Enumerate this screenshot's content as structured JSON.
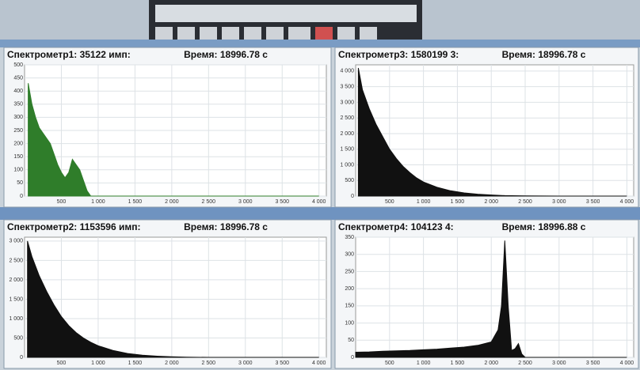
{
  "chart_data": [
    {
      "type": "area",
      "title": "Спектрометр1: 35122 имп:",
      "subtitle": "Время: 18996.78 с",
      "color": "#2f7d2a",
      "x": [
        50,
        100,
        150,
        200,
        250,
        300,
        350,
        400,
        450,
        500,
        550,
        600,
        650,
        700,
        750,
        800,
        850,
        900,
        1000,
        2000,
        3000,
        4000
      ],
      "values": [
        430,
        350,
        300,
        260,
        240,
        220,
        200,
        160,
        120,
        90,
        70,
        90,
        140,
        120,
        100,
        60,
        20,
        0,
        0,
        0,
        0,
        0
      ],
      "xlim": [
        0,
        4100
      ],
      "ylim": [
        0,
        500
      ],
      "xticks": [
        500,
        {
          "value": 1000,
          "label": "1 000"
        },
        {
          "value": 1500,
          "label": "1 500"
        },
        {
          "value": 2000,
          "label": "2 000"
        },
        {
          "value": 2500,
          "label": "2 500"
        },
        {
          "value": 3000,
          "label": "3 000"
        },
        {
          "value": 3500,
          "label": "3 500"
        },
        {
          "value": 4000,
          "label": "4 000"
        }
      ],
      "yticks": [
        0,
        50,
        100,
        150,
        200,
        250,
        300,
        350,
        400,
        450,
        500
      ],
      "grid": true
    },
    {
      "type": "area",
      "title": "Спектрометр3: 1580199 3:",
      "subtitle": "Время: 18996.78 с",
      "color": "#111111",
      "x": [
        40,
        100,
        200,
        300,
        400,
        500,
        600,
        700,
        800,
        900,
        1000,
        1200,
        1400,
        1600,
        1800,
        2000,
        2200,
        2500,
        3000,
        4000
      ],
      "values": [
        4100,
        3400,
        2800,
        2300,
        1900,
        1500,
        1200,
        950,
        750,
        580,
        450,
        280,
        170,
        100,
        60,
        35,
        15,
        5,
        0,
        0
      ],
      "xlim": [
        0,
        4100
      ],
      "ylim": [
        0,
        4200
      ],
      "xticks": [
        500,
        {
          "value": 1000,
          "label": "1 000"
        },
        {
          "value": 1500,
          "label": "1 500"
        },
        {
          "value": 2000,
          "label": "2 000"
        },
        {
          "value": 2500,
          "label": "2 500"
        },
        {
          "value": 3000,
          "label": "3 000"
        },
        {
          "value": 3500,
          "label": "3 500"
        },
        {
          "value": 4000,
          "label": "4 000"
        }
      ],
      "yticks": [
        0,
        500,
        {
          "value": 1000,
          "label": "1 000"
        },
        {
          "value": 1500,
          "label": "1 500"
        },
        {
          "value": 2000,
          "label": "2 000"
        },
        {
          "value": 2500,
          "label": "2 500"
        },
        {
          "value": 3000,
          "label": "3 000"
        },
        {
          "value": 3500,
          "label": "3 500"
        },
        {
          "value": 4000,
          "label": "4 000"
        }
      ],
      "grid": true
    },
    {
      "type": "area",
      "title": "Спектрометр2: 1153596 имп:",
      "subtitle": "Время: 18996.78 с",
      "color": "#111111",
      "x": [
        40,
        100,
        200,
        300,
        400,
        500,
        600,
        700,
        800,
        900,
        1000,
        1200,
        1400,
        1600,
        1800,
        2000,
        2200,
        2500,
        3000,
        4000
      ],
      "values": [
        3000,
        2600,
        2100,
        1700,
        1350,
        1050,
        820,
        640,
        500,
        390,
        300,
        180,
        100,
        55,
        30,
        15,
        5,
        0,
        0,
        0
      ],
      "xlim": [
        0,
        4100
      ],
      "ylim": [
        0,
        3100
      ],
      "xticks": [
        500,
        {
          "value": 1000,
          "label": "1 000"
        },
        {
          "value": 1500,
          "label": "1 500"
        },
        {
          "value": 2000,
          "label": "2 000"
        },
        {
          "value": 2500,
          "label": "2 500"
        },
        {
          "value": 3000,
          "label": "3 000"
        },
        {
          "value": 3500,
          "label": "3 500"
        },
        {
          "value": 4000,
          "label": "4 000"
        }
      ],
      "yticks": [
        0,
        500,
        {
          "value": 1000,
          "label": "1 000"
        },
        {
          "value": 1500,
          "label": "1 500"
        },
        {
          "value": 2000,
          "label": "2 000"
        },
        {
          "value": 2500,
          "label": "2 500"
        },
        {
          "value": 3000,
          "label": "3 000"
        }
      ],
      "grid": true
    },
    {
      "type": "area",
      "title": "Спектрометр4: 104123 4:",
      "subtitle": "Время: 18996.88 с",
      "color": "#111111",
      "x": [
        0,
        200,
        400,
        600,
        800,
        1000,
        1200,
        1400,
        1600,
        1800,
        2000,
        2100,
        2150,
        2200,
        2250,
        2300,
        2350,
        2400,
        2450,
        2500,
        3000,
        4000
      ],
      "values": [
        15,
        16,
        18,
        19,
        20,
        22,
        24,
        27,
        30,
        35,
        45,
        80,
        150,
        340,
        150,
        20,
        25,
        40,
        10,
        0,
        0,
        0
      ],
      "xlim": [
        0,
        4100
      ],
      "ylim": [
        0,
        350
      ],
      "xticks": [
        500,
        {
          "value": 1000,
          "label": "1 000"
        },
        {
          "value": 1500,
          "label": "1 500"
        },
        {
          "value": 2000,
          "label": "2 000"
        },
        {
          "value": 2500,
          "label": "2 500"
        },
        {
          "value": 3000,
          "label": "3 000"
        },
        {
          "value": 3500,
          "label": "3 500"
        },
        {
          "value": 4000,
          "label": "4 000"
        }
      ],
      "yticks": [
        0,
        50,
        100,
        150,
        200,
        250,
        300,
        350
      ],
      "grid": true
    }
  ]
}
